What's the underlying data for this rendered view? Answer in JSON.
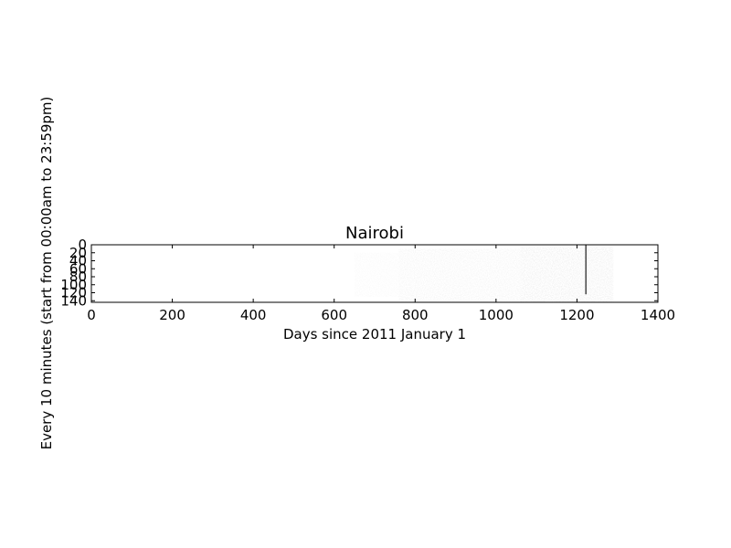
{
  "chart_data": {
    "type": "heatmap",
    "title": "Nairobi",
    "xlabel": "Days since 2011 January 1",
    "ylabel": "Every 10 minutes (start from 00:00am to 23:59pm)",
    "xlim": [
      0,
      1400
    ],
    "ylim": [
      144,
      0
    ],
    "x_ticks": [
      0,
      200,
      400,
      600,
      800,
      1000,
      1200,
      1400
    ],
    "y_ticks": [
      0,
      20,
      40,
      60,
      80,
      100,
      120,
      140
    ],
    "colormap": "greys",
    "grid": false,
    "activity_regions": [
      {
        "x_start": 650,
        "x_end": 760,
        "y_start": 20,
        "y_end": 130,
        "intensity": 0.03
      },
      {
        "x_start": 760,
        "x_end": 1060,
        "y_start": 10,
        "y_end": 140,
        "intensity": 0.06
      },
      {
        "x_start": 1060,
        "x_end": 1290,
        "y_start": 5,
        "y_end": 144,
        "intensity": 0.09
      }
    ],
    "highlight_lines": [
      {
        "x": 1222,
        "y_start": 0,
        "y_end": 124,
        "intensity": 0.9
      }
    ]
  }
}
